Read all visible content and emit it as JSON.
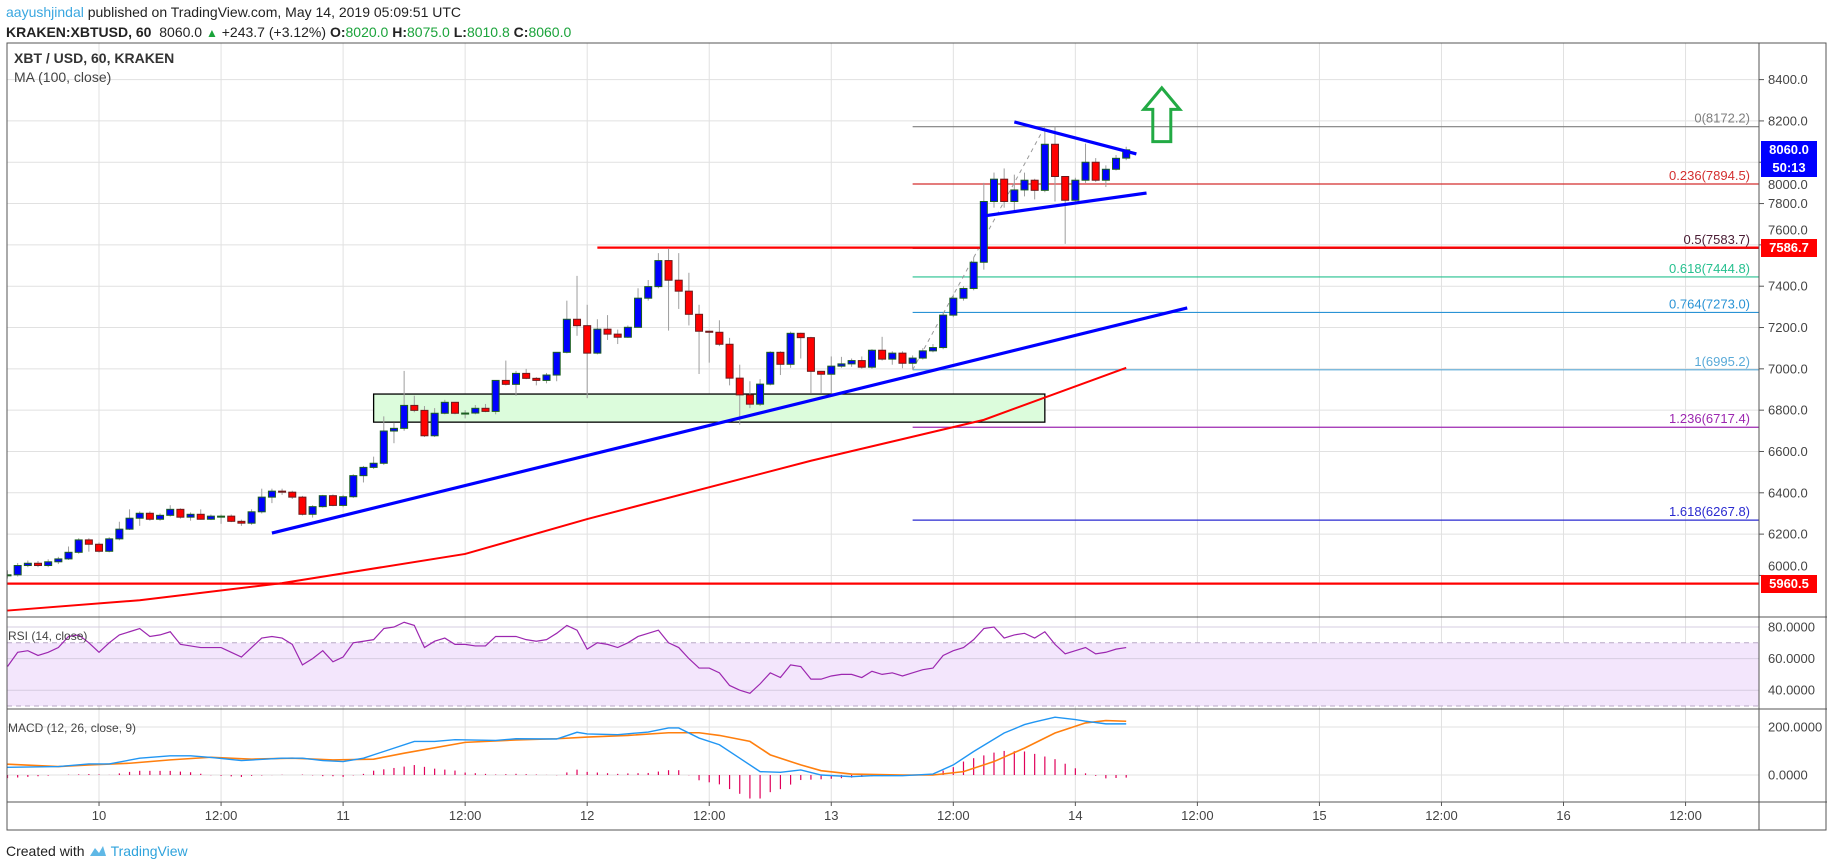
{
  "header": {
    "author": "aayushjindal",
    "published": "published on TradingView.com, May 14, 2019 05:09:51 UTC",
    "symbol": "KRAKEN:XBTUSD, 60",
    "last": "8060.0",
    "change": "+243.7 (+3.12%)",
    "o_label": "O:",
    "o": "8020.0",
    "h_label": "H:",
    "h": "8075.0",
    "l_label": "L:",
    "l": "8010.8",
    "c_label": "C:",
    "c": "8060.0"
  },
  "legend": {
    "title": "XBT / USD, 60, KRAKEN",
    "ma": "MA (100, close)"
  },
  "rsi_label": "RSI (14, close)",
  "macd_label": "MACD (12, 26, close, 9)",
  "footer": {
    "created_with": "Created with",
    "brand": "TradingView"
  },
  "price_tags": {
    "last": {
      "text": "8060.0",
      "color": "#0000ff"
    },
    "countdown": {
      "text": "50:13",
      "color": "#0000ff"
    },
    "level1": {
      "text": "7586.7",
      "color": "#ff0000"
    },
    "level2": {
      "text": "5960.5",
      "color": "#ff0000"
    }
  },
  "chart_data": {
    "type": "candlestick",
    "interval": "60",
    "first_candle_time": "05-09 15:00",
    "colors": {
      "up": "#0000ff",
      "down": "#ff0000",
      "ma": "#ff0000",
      "macd": "#2196f3",
      "signal": "#ff7f0e",
      "hist": "#e0005a",
      "rsi": "#9c27b0"
    },
    "price_axis": {
      "range": [
        5800,
        8500
      ],
      "ticks": [
        8400,
        8200,
        8000,
        7800,
        7600,
        7400,
        7200,
        7000,
        6800,
        6600,
        6400,
        6200,
        6000
      ],
      "tick_labels": [
        "8400.0",
        "8200.0",
        "8000.0",
        "7800.0",
        "7600.0",
        "7400.0",
        "7200.0",
        "7000.0",
        "6800.0",
        "6600.0",
        "6400.0",
        "6200.0",
        "6000.0"
      ]
    },
    "time_axis": {
      "ticks": [
        "05-10 00:00",
        "05-10 12:00",
        "05-11 00:00",
        "05-11 12:00",
        "05-12 00:00",
        "05-12 12:00",
        "05-13 00:00",
        "05-13 12:00",
        "05-14 00:00",
        "05-14 12:00",
        "05-15 00:00",
        "05-15 12:00",
        "05-16 00:00",
        "05-16 12:00"
      ],
      "tick_labels": [
        "10",
        "12:00",
        "11",
        "12:00",
        "12",
        "12:00",
        "13",
        "12:00",
        "14",
        "12:00",
        "15",
        "12:00",
        "16",
        "12:00"
      ]
    },
    "ohlc": [
      [
        6000,
        6025,
        5985,
        6003
      ],
      [
        6003,
        6060,
        5995,
        6048
      ],
      [
        6048,
        6072,
        6040,
        6059
      ],
      [
        6059,
        6070,
        6040,
        6048
      ],
      [
        6048,
        6078,
        6040,
        6066
      ],
      [
        6066,
        6090,
        6055,
        6080
      ],
      [
        6080,
        6140,
        6075,
        6112
      ],
      [
        6112,
        6180,
        6105,
        6172
      ],
      [
        6172,
        6180,
        6115,
        6151
      ],
      [
        6151,
        6160,
        6110,
        6117
      ],
      [
        6117,
        6185,
        6112,
        6177
      ],
      [
        6177,
        6260,
        6170,
        6224
      ],
      [
        6224,
        6320,
        6220,
        6277
      ],
      [
        6277,
        6310,
        6240,
        6301
      ],
      [
        6301,
        6310,
        6265,
        6272
      ],
      [
        6272,
        6300,
        6265,
        6291
      ],
      [
        6291,
        6340,
        6285,
        6320
      ],
      [
        6320,
        6325,
        6275,
        6282
      ],
      [
        6282,
        6305,
        6265,
        6296
      ],
      [
        6296,
        6320,
        6270,
        6272
      ],
      [
        6272,
        6295,
        6268,
        6287
      ],
      [
        6287,
        6295,
        6250,
        6287
      ],
      [
        6287,
        6295,
        6258,
        6262
      ],
      [
        6262,
        6270,
        6240,
        6253
      ],
      [
        6253,
        6320,
        6245,
        6308
      ],
      [
        6308,
        6420,
        6300,
        6379
      ],
      [
        6379,
        6420,
        6350,
        6408
      ],
      [
        6408,
        6420,
        6390,
        6403
      ],
      [
        6403,
        6410,
        6370,
        6379
      ],
      [
        6379,
        6385,
        6290,
        6296
      ],
      [
        6296,
        6340,
        6280,
        6333
      ],
      [
        6333,
        6390,
        6328,
        6386
      ],
      [
        6386,
        6392,
        6335,
        6339
      ],
      [
        6339,
        6390,
        6330,
        6381
      ],
      [
        6381,
        6490,
        6375,
        6483
      ],
      [
        6483,
        6530,
        6450,
        6523
      ],
      [
        6523,
        6575,
        6515,
        6543
      ],
      [
        6543,
        6770,
        6535,
        6699
      ],
      [
        6699,
        6740,
        6640,
        6712
      ],
      [
        6712,
        6990,
        6700,
        6823
      ],
      [
        6823,
        6870,
        6790,
        6799
      ],
      [
        6799,
        6820,
        6670,
        6676
      ],
      [
        6676,
        6810,
        6670,
        6785
      ],
      [
        6785,
        6850,
        6780,
        6838
      ],
      [
        6838,
        6840,
        6780,
        6785
      ],
      [
        6786,
        6800,
        6760,
        6786
      ],
      [
        6786,
        6825,
        6780,
        6809
      ],
      [
        6809,
        6830,
        6790,
        6794
      ],
      [
        6794,
        6944,
        6780,
        6944
      ],
      [
        6944,
        7040,
        6920,
        6925
      ],
      [
        6925,
        6990,
        6870,
        6978
      ],
      [
        6978,
        7000,
        6950,
        6954
      ],
      [
        6954,
        6960,
        6920,
        6944
      ],
      [
        6944,
        6980,
        6930,
        6970
      ],
      [
        6970,
        7080,
        6940,
        7080
      ],
      [
        7080,
        7330,
        7075,
        7240
      ],
      [
        7240,
        7450,
        7160,
        7209
      ],
      [
        7209,
        7310,
        6858,
        7076
      ],
      [
        7076,
        7240,
        7070,
        7192
      ],
      [
        7192,
        7260,
        7140,
        7168
      ],
      [
        7168,
        7190,
        7120,
        7153
      ],
      [
        7153,
        7210,
        7150,
        7201
      ],
      [
        7201,
        7390,
        7200,
        7342
      ],
      [
        7342,
        7430,
        7330,
        7398
      ],
      [
        7398,
        7560,
        7390,
        7524
      ],
      [
        7524,
        7583,
        7185,
        7429
      ],
      [
        7429,
        7560,
        7290,
        7376
      ],
      [
        7376,
        7465,
        7210,
        7264
      ],
      [
        7264,
        7310,
        6975,
        7182
      ],
      [
        7182,
        7185,
        7030,
        7177
      ],
      [
        7177,
        7235,
        7110,
        7119
      ],
      [
        7119,
        7150,
        6920,
        6955
      ],
      [
        6955,
        7020,
        6730,
        6874
      ],
      [
        6874,
        6940,
        6810,
        6829
      ],
      [
        6829,
        6950,
        6820,
        6926
      ],
      [
        6926,
        7085,
        6920,
        7080
      ],
      [
        7080,
        7085,
        6970,
        7022
      ],
      [
        7022,
        7180,
        7005,
        7172
      ],
      [
        7172,
        7175,
        7050,
        7151
      ],
      [
        7151,
        7155,
        6880,
        6988
      ],
      [
        6988,
        6990,
        6880,
        6974
      ],
      [
        6974,
        7060,
        6880,
        7013
      ],
      [
        7013,
        7058,
        7005,
        7024
      ],
      [
        7024,
        7050,
        7010,
        7040
      ],
      [
        7040,
        7060,
        7000,
        7008
      ],
      [
        7008,
        7095,
        7000,
        7090
      ],
      [
        7090,
        7155,
        7040,
        7047
      ],
      [
        7047,
        7085,
        7020,
        7076
      ],
      [
        7076,
        7085,
        7003,
        7027
      ],
      [
        7027,
        7065,
        7000,
        7052
      ],
      [
        7052,
        7100,
        7045,
        7087
      ],
      [
        7087,
        7120,
        7080,
        7103
      ],
      [
        7103,
        7270,
        7095,
        7260
      ],
      [
        7260,
        7360,
        7250,
        7342
      ],
      [
        7342,
        7400,
        7330,
        7389
      ],
      [
        7389,
        7540,
        7380,
        7516
      ],
      [
        7516,
        7900,
        7480,
        7810
      ],
      [
        7810,
        7950,
        7780,
        7918
      ],
      [
        7918,
        7970,
        7780,
        7810
      ],
      [
        7810,
        7940,
        7755,
        7866
      ],
      [
        7866,
        7950,
        7835,
        7913
      ],
      [
        7913,
        7920,
        7820,
        7864
      ],
      [
        7864,
        8160,
        7855,
        8087
      ],
      [
        8087,
        8172,
        7810,
        7931
      ],
      [
        7931,
        7925,
        7605,
        7816
      ],
      [
        7816,
        7925,
        7800,
        7913
      ],
      [
        7913,
        8090,
        7900,
        8000
      ],
      [
        8000,
        8020,
        7905,
        7913
      ],
      [
        7913,
        7985,
        7880,
        7966
      ],
      [
        7966,
        8035,
        7960,
        8019
      ],
      [
        8020,
        8075,
        8010,
        8060
      ]
    ],
    "ma100": [
      [
        "05-09 15:00",
        5830
      ],
      [
        "05-10 04:00",
        5880
      ],
      [
        "05-10 18:00",
        5963
      ],
      [
        "05-11 12:00",
        6104
      ],
      [
        "05-12 00:00",
        6273
      ],
      [
        "05-12 22:00",
        6555
      ],
      [
        "05-13 15:00",
        6753
      ],
      [
        "05-14 05:00",
        7005
      ]
    ],
    "rsi": {
      "range": [
        25,
        85
      ],
      "band": [
        30,
        70
      ],
      "ticks": [
        80,
        60,
        40
      ],
      "tick_labels": [
        "80.0000",
        "60.0000",
        "40.0000"
      ],
      "values": [
        55,
        64,
        65,
        62,
        64,
        67,
        74,
        75,
        70,
        64,
        70,
        75,
        77,
        79,
        74,
        75,
        77,
        69,
        68,
        67,
        67,
        67,
        64,
        61,
        67,
        73,
        74,
        73,
        69,
        56,
        60,
        65,
        58,
        61,
        70,
        71,
        72,
        79,
        80,
        83,
        81,
        67,
        71,
        73,
        69,
        69,
        68,
        68,
        74,
        74,
        74,
        72,
        71,
        72,
        76,
        81,
        78,
        66,
        70,
        69,
        67,
        70,
        74,
        76,
        78,
        70,
        67,
        60,
        54,
        54,
        51,
        43,
        40,
        38,
        44,
        51,
        48,
        56,
        55,
        47,
        47,
        49,
        50,
        50,
        48,
        52,
        50,
        51,
        49,
        51,
        53,
        54,
        62,
        65,
        67,
        72,
        79,
        80,
        73,
        75,
        76,
        73,
        77,
        69,
        63,
        65,
        67,
        63,
        64,
        66,
        67
      ]
    },
    "macd": {
      "ticks": [
        200,
        0
      ],
      "tick_labels": [
        "200.0000",
        "0.0000"
      ],
      "macd": [
        [
          "05-09 15:00",
          32
        ],
        [
          "05-09 20:00",
          35
        ],
        [
          "05-09 23:00",
          46
        ],
        [
          "05-10 01:00",
          46
        ],
        [
          "05-10 04:00",
          70
        ],
        [
          "05-10 07:00",
          80
        ],
        [
          "05-10 09:00",
          80
        ],
        [
          "05-10 11:00",
          73
        ],
        [
          "05-10 14:00",
          60
        ],
        [
          "05-10 18:00",
          70
        ],
        [
          "05-10 20:00",
          70
        ],
        [
          "05-10 22:00",
          60
        ],
        [
          "05-11 00:00",
          56
        ],
        [
          "05-11 02:00",
          70
        ],
        [
          "05-11 04:00",
          98
        ],
        [
          "05-11 07:00",
          140
        ],
        [
          "05-11 09:00",
          140
        ],
        [
          "05-11 11:00",
          147
        ],
        [
          "05-11 15:00",
          144
        ],
        [
          "05-11 17:00",
          151
        ],
        [
          "05-11 21:00",
          150
        ],
        [
          "05-11 23:00",
          178
        ],
        [
          "05-12 00:00",
          171
        ],
        [
          "05-12 03:00",
          168
        ],
        [
          "05-12 06:00",
          179
        ],
        [
          "05-12 08:00",
          196
        ],
        [
          "05-12 09:00",
          196
        ],
        [
          "05-12 11:00",
          154
        ],
        [
          "05-12 13:00",
          126
        ],
        [
          "05-12 15:00",
          70
        ],
        [
          "05-12 17:00",
          14
        ],
        [
          "05-12 19:00",
          11
        ],
        [
          "05-12 21:00",
          21
        ],
        [
          "05-12 23:00",
          0
        ],
        [
          "05-13 02:00",
          -7
        ],
        [
          "05-13 04:00",
          -3
        ],
        [
          "05-13 07:00",
          -3
        ],
        [
          "05-13 10:00",
          4
        ],
        [
          "05-13 12:00",
          42
        ],
        [
          "05-13 14:00",
          98
        ],
        [
          "05-13 17:00",
          175
        ],
        [
          "05-13 19:00",
          210
        ],
        [
          "05-13 20:00",
          221
        ],
        [
          "05-13 22:00",
          241
        ],
        [
          "05-14 00:00",
          231
        ],
        [
          "05-14 01:00",
          224
        ],
        [
          "05-14 03:00",
          213
        ],
        [
          "05-14 05:00",
          213
        ]
      ],
      "signal": [
        [
          "05-09 15:00",
          45
        ],
        [
          "05-09 20:00",
          35
        ],
        [
          "05-09 23:00",
          42
        ],
        [
          "05-10 03:00",
          49
        ],
        [
          "05-10 07:00",
          63
        ],
        [
          "05-10 11:00",
          74
        ],
        [
          "05-10 15:00",
          66
        ],
        [
          "05-10 19:00",
          70
        ],
        [
          "05-10 23:00",
          63
        ],
        [
          "05-11 03:00",
          66
        ],
        [
          "05-11 06:00",
          91
        ],
        [
          "05-11 12:00",
          136
        ],
        [
          "05-11 17:00",
          146
        ],
        [
          "05-11 21:00",
          151
        ],
        [
          "05-12 00:00",
          158
        ],
        [
          "05-12 04:00",
          165
        ],
        [
          "05-12 08:00",
          176
        ],
        [
          "05-12 11:00",
          176
        ],
        [
          "05-12 13:00",
          165
        ],
        [
          "05-12 16:00",
          140
        ],
        [
          "05-12 18:00",
          84
        ],
        [
          "05-12 21:00",
          42
        ],
        [
          "05-12 23:00",
          18
        ],
        [
          "05-13 02:00",
          4
        ],
        [
          "05-13 07:00",
          0
        ],
        [
          "05-13 10:00",
          0
        ],
        [
          "05-13 13:00",
          14
        ],
        [
          "05-13 16:00",
          56
        ],
        [
          "05-13 19:00",
          112
        ],
        [
          "05-13 22:00",
          175
        ],
        [
          "05-14 01:00",
          217
        ],
        [
          "05-14 03:00",
          227
        ],
        [
          "05-14 05:00",
          224
        ]
      ]
    },
    "drawings": {
      "hlines": [
        {
          "price": 7586.7,
          "from": "05-12 01:00",
          "color": "#ff0000"
        },
        {
          "price": 5960.5,
          "from": "05-09 15:00",
          "color": "#ff0000"
        }
      ],
      "fib": {
        "from": "05-13 08:00",
        "low": 6995.2,
        "high": 8172.2,
        "trend_to": "05-13 21:00",
        "levels": [
          {
            "label": "0(8172.2)",
            "price": 8172.2,
            "color": "#7f7f7f"
          },
          {
            "label": "0.236(7894.5)",
            "price": 7894.5,
            "color": "#d32f2f"
          },
          {
            "label": "0.5(7583.7)",
            "price": 7583.7,
            "color": "#4a1c34"
          },
          {
            "label": "0.618(7444.8)",
            "price": 7444.8,
            "color": "#26c08f"
          },
          {
            "label": "0.764(7273.0)",
            "price": 7273.0,
            "color": "#2a93d5"
          },
          {
            "label": "1(6995.2)",
            "price": 6995.2,
            "color": "#5aaad8"
          },
          {
            "label": "1.236(6717.4)",
            "price": 6717.4,
            "color": "#9c27b0"
          },
          {
            "label": "1.618(6267.8)",
            "price": 6267.8,
            "color": "#2a2ad0"
          }
        ]
      },
      "trendlines": [
        {
          "p1": [
            "05-10 17:00",
            6205
          ],
          "p2": [
            "05-14 11:00",
            7295
          ],
          "color": "#0000ff"
        },
        {
          "p1": [
            "05-13 18:00",
            8195
          ],
          "p2": [
            "05-14 06:00",
            8040
          ],
          "color": "#0000ff"
        },
        {
          "p1": [
            "05-13 15:00",
            7740
          ],
          "p2": [
            "05-14 07:00",
            7851
          ],
          "color": "#0000ff"
        }
      ],
      "box": {
        "from": "05-11 03:00",
        "to": "05-13 21:00",
        "top": 6878,
        "bottom": 6742,
        "fill": "#dcfcdc"
      },
      "arrow": {
        "time": "05-14 08:30",
        "tip": 8360,
        "base": 8100,
        "color": "#22aa44",
        "direction": "up"
      }
    }
  }
}
